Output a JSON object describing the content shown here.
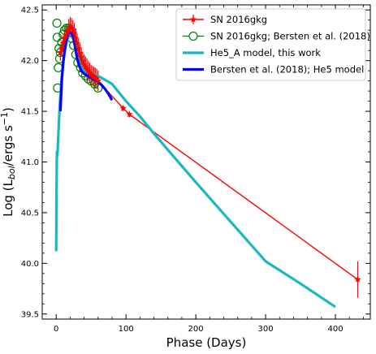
{
  "chart_data": {
    "type": "line",
    "title": "",
    "xlabel": "Phase (Days)",
    "ylabel": "Log (L_bol/ergs s^-1)",
    "xlim": [
      -20,
      450
    ],
    "ylim": [
      39.45,
      42.55
    ],
    "x_ticks": [
      0,
      100,
      200,
      300,
      400
    ],
    "y_ticks": [
      39.5,
      40.0,
      40.5,
      41.0,
      41.5,
      42.0,
      42.5
    ],
    "x_tick_labels": [
      "0",
      "100",
      "200",
      "300",
      "400"
    ],
    "y_tick_labels": [
      "39.5",
      "40.0",
      "40.5",
      "41.0",
      "41.5",
      "42.0",
      "42.5"
    ],
    "grid": false,
    "legend_position": "top-right",
    "colors": {
      "sn2016gkg": "#ff0000",
      "bersten_obs": "#008000",
      "he5a_model": "#1ab8c0",
      "bersten_model": "#0000ff"
    },
    "series": [
      {
        "name": "SN 2016gkg",
        "kind": "error-line",
        "color": "#ff0000",
        "marker": "star",
        "x": [
          6,
          8,
          10,
          12,
          14,
          16,
          18,
          20,
          22,
          24,
          26,
          28,
          30,
          32,
          34,
          36,
          38,
          40,
          42,
          44,
          46,
          48,
          50,
          52,
          54,
          56,
          58,
          60,
          96,
          105,
          432
        ],
        "y": [
          42.08,
          42.12,
          42.17,
          42.22,
          42.25,
          42.28,
          42.31,
          42.33,
          42.32,
          42.3,
          42.27,
          42.22,
          42.17,
          42.12,
          42.07,
          42.03,
          41.99,
          41.96,
          41.94,
          41.92,
          41.9,
          41.88,
          41.86,
          41.85,
          41.84,
          41.83,
          41.82,
          41.8,
          41.53,
          41.47,
          39.84
        ],
        "yerr": [
          0.08,
          0.08,
          0.08,
          0.08,
          0.08,
          0.08,
          0.1,
          0.1,
          0.1,
          0.1,
          0.1,
          0.1,
          0.1,
          0.1,
          0.1,
          0.1,
          0.1,
          0.1,
          0.1,
          0.1,
          0.1,
          0.1,
          0.1,
          0.1,
          0.1,
          0.1,
          0.1,
          0.1,
          0.03,
          0.03,
          0.18
        ]
      },
      {
        "name": "SN 2016gkg; Bersten et al. (2018)",
        "kind": "open-circles",
        "color": "#008000",
        "marker": "circle-open",
        "x": [
          1,
          1.5,
          2,
          3,
          4,
          5,
          6,
          8,
          10,
          12,
          15,
          18,
          20,
          22,
          25,
          28,
          31,
          35,
          38,
          42,
          46,
          50,
          55,
          60
        ],
        "y": [
          42.37,
          42.23,
          41.73,
          41.93,
          42.12,
          42.02,
          42.08,
          42.18,
          42.26,
          42.3,
          42.32,
          42.32,
          42.28,
          42.22,
          42.15,
          42.06,
          41.98,
          41.93,
          41.88,
          41.85,
          41.82,
          41.8,
          41.77,
          41.73
        ]
      },
      {
        "name": "He5_A model, this work",
        "kind": "line",
        "color": "#1ab8c0",
        "x": [
          0,
          0.5,
          1,
          1.5,
          2,
          3,
          5,
          8,
          12,
          16,
          20,
          22,
          25,
          30,
          35,
          40,
          50,
          60,
          80,
          100,
          120,
          140,
          160,
          200,
          250,
          300,
          350,
          400
        ],
        "y": [
          40.12,
          40.7,
          41.1,
          41.06,
          41.1,
          41.25,
          41.55,
          41.85,
          42.08,
          42.22,
          42.27,
          42.27,
          42.2,
          42.05,
          41.95,
          41.9,
          41.87,
          41.85,
          41.77,
          41.6,
          41.45,
          41.28,
          41.12,
          40.8,
          40.41,
          40.02,
          39.8,
          39.57
        ]
      },
      {
        "name": "Bersten et al. (2018); He5 model",
        "kind": "line",
        "color": "#0000ff",
        "x": [
          6,
          8,
          10,
          12,
          14,
          16,
          18,
          20,
          22,
          24,
          26,
          28,
          30,
          33,
          36,
          40,
          45,
          50,
          55,
          60,
          65,
          70,
          75,
          80
        ],
        "y": [
          41.5,
          41.8,
          41.98,
          42.1,
          42.18,
          42.24,
          42.27,
          42.28,
          42.27,
          42.24,
          42.18,
          42.1,
          42.02,
          41.95,
          41.9,
          41.87,
          41.85,
          41.83,
          41.81,
          41.79,
          41.76,
          41.72,
          41.67,
          41.61
        ]
      }
    ]
  }
}
